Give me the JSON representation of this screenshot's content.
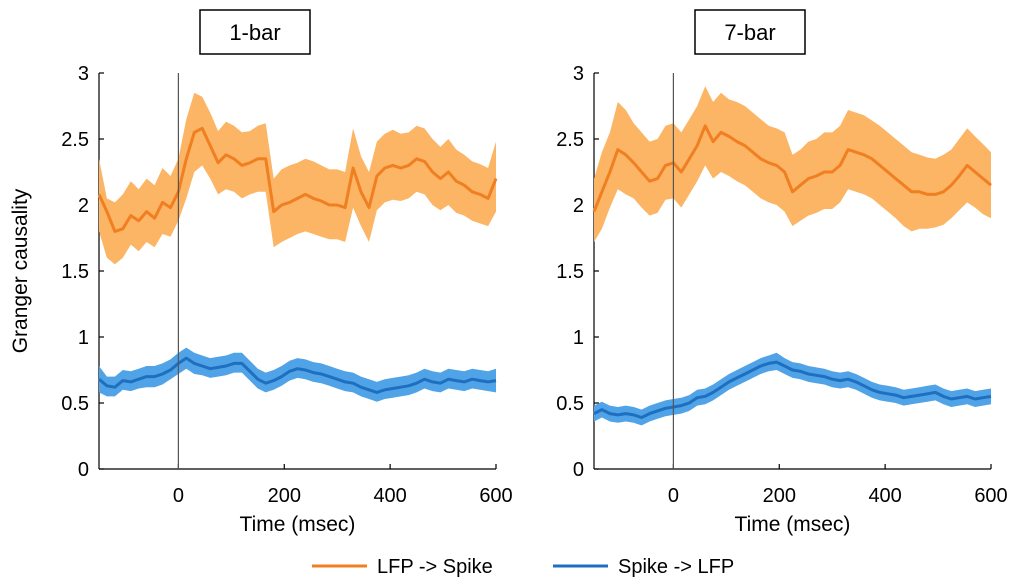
{
  "legend": {
    "entries": [
      {
        "label": "LFP -> Spike",
        "color": "#f07f22"
      },
      {
        "label": "Spike -> LFP",
        "color": "#1f6fc0"
      }
    ]
  },
  "colors": {
    "lfp_line": "#f07f22",
    "lfp_band": "#fbb565",
    "spike_line": "#1f6fc0",
    "spike_band": "#4fa3e6"
  },
  "chart_data": [
    {
      "type": "line",
      "title": "1-bar",
      "xlabel": "Time (msec)",
      "ylabel": "Granger causality",
      "xlim": [
        -150,
        600
      ],
      "ylim": [
        0,
        3
      ],
      "xticks": [
        0,
        200,
        400,
        600
      ],
      "yticks": [
        0,
        0.5,
        1,
        1.5,
        2,
        2.5,
        3
      ],
      "vline_x": 0,
      "x": [
        -150,
        -135,
        -120,
        -105,
        -90,
        -75,
        -60,
        -45,
        -30,
        -15,
        0,
        15,
        30,
        45,
        60,
        75,
        90,
        105,
        120,
        135,
        150,
        165,
        180,
        195,
        210,
        225,
        240,
        255,
        270,
        285,
        300,
        315,
        330,
        345,
        360,
        375,
        390,
        405,
        420,
        435,
        450,
        465,
        480,
        495,
        510,
        525,
        540,
        555,
        570,
        585,
        600
      ],
      "series": [
        {
          "name": "LFP -> Spike",
          "values": [
            2.08,
            1.95,
            1.8,
            1.82,
            1.92,
            1.88,
            1.95,
            1.9,
            2.02,
            1.98,
            2.1,
            2.35,
            2.55,
            2.58,
            2.45,
            2.32,
            2.38,
            2.35,
            2.3,
            2.32,
            2.35,
            2.35,
            1.95,
            2.0,
            2.02,
            2.05,
            2.08,
            2.05,
            2.03,
            2.0,
            2.0,
            1.98,
            2.28,
            2.1,
            1.98,
            2.22,
            2.28,
            2.3,
            2.28,
            2.3,
            2.35,
            2.33,
            2.25,
            2.2,
            2.25,
            2.18,
            2.15,
            2.1,
            2.08,
            2.05,
            2.2
          ],
          "lower": [
            1.8,
            1.6,
            1.55,
            1.6,
            1.7,
            1.65,
            1.72,
            1.68,
            1.78,
            1.76,
            1.88,
            2.05,
            2.25,
            2.3,
            2.2,
            2.08,
            2.12,
            2.1,
            2.05,
            2.08,
            2.1,
            2.1,
            1.68,
            1.72,
            1.75,
            1.78,
            1.8,
            1.78,
            1.76,
            1.74,
            1.74,
            1.72,
            1.98,
            1.84,
            1.72,
            1.96,
            2.02,
            2.04,
            2.03,
            2.05,
            2.1,
            2.08,
            2.0,
            1.96,
            2.0,
            1.94,
            1.92,
            1.88,
            1.86,
            1.84,
            1.95
          ],
          "upper": [
            2.35,
            2.05,
            2.02,
            2.08,
            2.18,
            2.12,
            2.2,
            2.15,
            2.28,
            2.22,
            2.35,
            2.65,
            2.85,
            2.82,
            2.7,
            2.56,
            2.63,
            2.6,
            2.55,
            2.56,
            2.6,
            2.62,
            2.2,
            2.27,
            2.3,
            2.32,
            2.35,
            2.33,
            2.3,
            2.27,
            2.27,
            2.25,
            2.58,
            2.37,
            2.25,
            2.48,
            2.54,
            2.57,
            2.54,
            2.55,
            2.6,
            2.58,
            2.5,
            2.44,
            2.5,
            2.42,
            2.38,
            2.33,
            2.31,
            2.28,
            2.48
          ]
        },
        {
          "name": "Spike -> LFP",
          "values": [
            0.68,
            0.63,
            0.62,
            0.67,
            0.66,
            0.68,
            0.7,
            0.7,
            0.72,
            0.75,
            0.8,
            0.84,
            0.8,
            0.78,
            0.76,
            0.77,
            0.78,
            0.8,
            0.8,
            0.74,
            0.68,
            0.65,
            0.67,
            0.7,
            0.74,
            0.76,
            0.75,
            0.73,
            0.72,
            0.7,
            0.68,
            0.66,
            0.65,
            0.62,
            0.6,
            0.58,
            0.6,
            0.61,
            0.62,
            0.63,
            0.65,
            0.68,
            0.66,
            0.65,
            0.68,
            0.67,
            0.66,
            0.68,
            0.67,
            0.66,
            0.67
          ],
          "lower": [
            0.58,
            0.55,
            0.55,
            0.6,
            0.59,
            0.61,
            0.62,
            0.62,
            0.64,
            0.68,
            0.72,
            0.76,
            0.72,
            0.71,
            0.69,
            0.7,
            0.71,
            0.73,
            0.73,
            0.67,
            0.61,
            0.58,
            0.6,
            0.63,
            0.67,
            0.69,
            0.68,
            0.66,
            0.65,
            0.63,
            0.61,
            0.59,
            0.58,
            0.55,
            0.53,
            0.51,
            0.53,
            0.54,
            0.55,
            0.56,
            0.58,
            0.61,
            0.59,
            0.58,
            0.61,
            0.6,
            0.59,
            0.61,
            0.6,
            0.59,
            0.58
          ],
          "upper": [
            0.78,
            0.7,
            0.7,
            0.75,
            0.74,
            0.76,
            0.78,
            0.78,
            0.8,
            0.83,
            0.88,
            0.92,
            0.88,
            0.86,
            0.84,
            0.85,
            0.86,
            0.88,
            0.88,
            0.82,
            0.76,
            0.73,
            0.75,
            0.78,
            0.82,
            0.84,
            0.83,
            0.81,
            0.8,
            0.78,
            0.76,
            0.74,
            0.73,
            0.7,
            0.68,
            0.66,
            0.68,
            0.69,
            0.7,
            0.71,
            0.73,
            0.76,
            0.74,
            0.73,
            0.76,
            0.75,
            0.74,
            0.76,
            0.75,
            0.74,
            0.76
          ]
        }
      ]
    },
    {
      "type": "line",
      "title": "7-bar",
      "xlabel": "Time (msec)",
      "ylabel": "",
      "xlim": [
        -150,
        600
      ],
      "ylim": [
        0,
        3
      ],
      "xticks": [
        0,
        200,
        400,
        600
      ],
      "yticks": [
        0,
        0.5,
        1,
        1.5,
        2,
        2.5,
        3
      ],
      "vline_x": 0,
      "x": [
        -150,
        -135,
        -120,
        -105,
        -90,
        -75,
        -60,
        -45,
        -30,
        -15,
        0,
        15,
        30,
        45,
        60,
        75,
        90,
        105,
        120,
        135,
        150,
        165,
        180,
        195,
        210,
        225,
        240,
        255,
        270,
        285,
        300,
        315,
        330,
        345,
        360,
        375,
        390,
        405,
        420,
        435,
        450,
        465,
        480,
        495,
        510,
        525,
        540,
        555,
        570,
        585,
        600
      ],
      "series": [
        {
          "name": "LFP -> Spike",
          "values": [
            1.95,
            2.1,
            2.25,
            2.42,
            2.38,
            2.32,
            2.25,
            2.18,
            2.2,
            2.3,
            2.32,
            2.25,
            2.35,
            2.45,
            2.6,
            2.48,
            2.55,
            2.52,
            2.48,
            2.45,
            2.4,
            2.35,
            2.32,
            2.3,
            2.25,
            2.1,
            2.15,
            2.2,
            2.22,
            2.25,
            2.25,
            2.3,
            2.42,
            2.4,
            2.38,
            2.35,
            2.3,
            2.25,
            2.2,
            2.15,
            2.1,
            2.1,
            2.08,
            2.08,
            2.1,
            2.15,
            2.22,
            2.3,
            2.25,
            2.2,
            2.15
          ],
          "lower": [
            1.72,
            1.82,
            1.98,
            2.12,
            2.08,
            2.05,
            1.98,
            1.92,
            1.94,
            2.04,
            2.05,
            1.98,
            2.08,
            2.18,
            2.3,
            2.2,
            2.25,
            2.22,
            2.18,
            2.15,
            2.1,
            2.05,
            2.02,
            2.0,
            1.95,
            1.84,
            1.88,
            1.92,
            1.94,
            1.97,
            1.97,
            2.02,
            2.12,
            2.1,
            2.08,
            2.05,
            2.0,
            1.95,
            1.9,
            1.84,
            1.8,
            1.82,
            1.82,
            1.83,
            1.85,
            1.9,
            1.96,
            2.02,
            1.98,
            1.93,
            1.9
          ],
          "upper": [
            2.2,
            2.4,
            2.55,
            2.78,
            2.72,
            2.62,
            2.55,
            2.48,
            2.5,
            2.6,
            2.62,
            2.55,
            2.65,
            2.75,
            2.9,
            2.78,
            2.85,
            2.8,
            2.78,
            2.75,
            2.7,
            2.65,
            2.6,
            2.58,
            2.55,
            2.38,
            2.42,
            2.48,
            2.5,
            2.55,
            2.55,
            2.6,
            2.72,
            2.7,
            2.68,
            2.64,
            2.6,
            2.55,
            2.5,
            2.45,
            2.4,
            2.38,
            2.36,
            2.35,
            2.38,
            2.42,
            2.5,
            2.58,
            2.52,
            2.46,
            2.4
          ]
        },
        {
          "name": "Spike -> LFP",
          "values": [
            0.42,
            0.45,
            0.42,
            0.41,
            0.42,
            0.41,
            0.39,
            0.42,
            0.44,
            0.46,
            0.47,
            0.48,
            0.5,
            0.54,
            0.55,
            0.58,
            0.62,
            0.66,
            0.69,
            0.72,
            0.75,
            0.78,
            0.8,
            0.81,
            0.78,
            0.75,
            0.74,
            0.72,
            0.71,
            0.7,
            0.68,
            0.67,
            0.68,
            0.66,
            0.63,
            0.6,
            0.58,
            0.57,
            0.56,
            0.54,
            0.55,
            0.56,
            0.57,
            0.58,
            0.55,
            0.53,
            0.54,
            0.55,
            0.53,
            0.54,
            0.55
          ],
          "lower": [
            0.36,
            0.39,
            0.36,
            0.35,
            0.36,
            0.35,
            0.33,
            0.36,
            0.38,
            0.4,
            0.41,
            0.42,
            0.44,
            0.48,
            0.49,
            0.52,
            0.56,
            0.6,
            0.63,
            0.66,
            0.69,
            0.72,
            0.74,
            0.75,
            0.72,
            0.69,
            0.68,
            0.66,
            0.65,
            0.64,
            0.62,
            0.61,
            0.62,
            0.6,
            0.57,
            0.54,
            0.52,
            0.51,
            0.5,
            0.48,
            0.49,
            0.5,
            0.51,
            0.52,
            0.49,
            0.47,
            0.48,
            0.49,
            0.47,
            0.48,
            0.49
          ],
          "upper": [
            0.48,
            0.51,
            0.48,
            0.47,
            0.48,
            0.47,
            0.45,
            0.48,
            0.5,
            0.52,
            0.53,
            0.54,
            0.56,
            0.6,
            0.61,
            0.64,
            0.68,
            0.72,
            0.75,
            0.78,
            0.81,
            0.84,
            0.86,
            0.88,
            0.84,
            0.81,
            0.8,
            0.78,
            0.77,
            0.76,
            0.74,
            0.73,
            0.74,
            0.72,
            0.69,
            0.66,
            0.64,
            0.63,
            0.62,
            0.6,
            0.61,
            0.62,
            0.63,
            0.64,
            0.61,
            0.59,
            0.6,
            0.61,
            0.59,
            0.6,
            0.61
          ]
        }
      ]
    }
  ]
}
